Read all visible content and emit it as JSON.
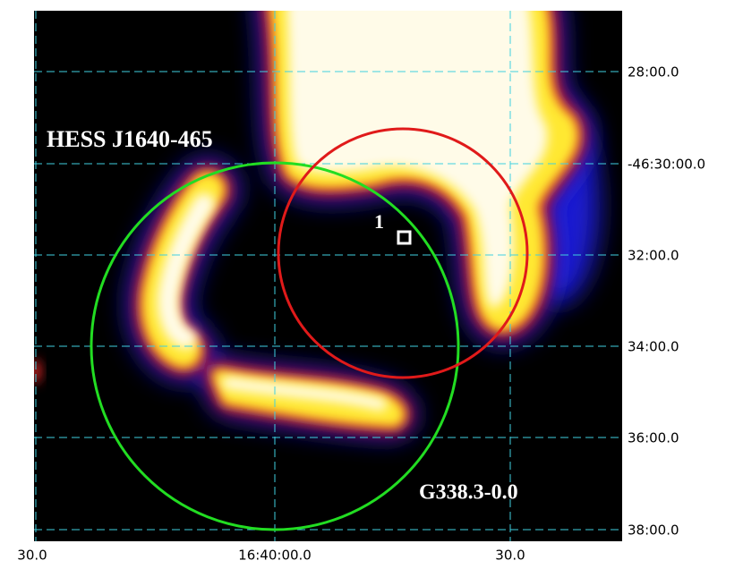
{
  "axes": {
    "y_labels": [
      "28:00.0",
      "-46:30:00.0",
      "32:00.0",
      "34:00.0",
      "36:00.0",
      "38:00.0"
    ],
    "x_labels": [
      "30.0",
      "16:40:00.0",
      "30.0"
    ]
  },
  "annotations": {
    "source": "HESS J1640-465",
    "remnant": "G338.3-0.0",
    "marker": "1"
  }
}
